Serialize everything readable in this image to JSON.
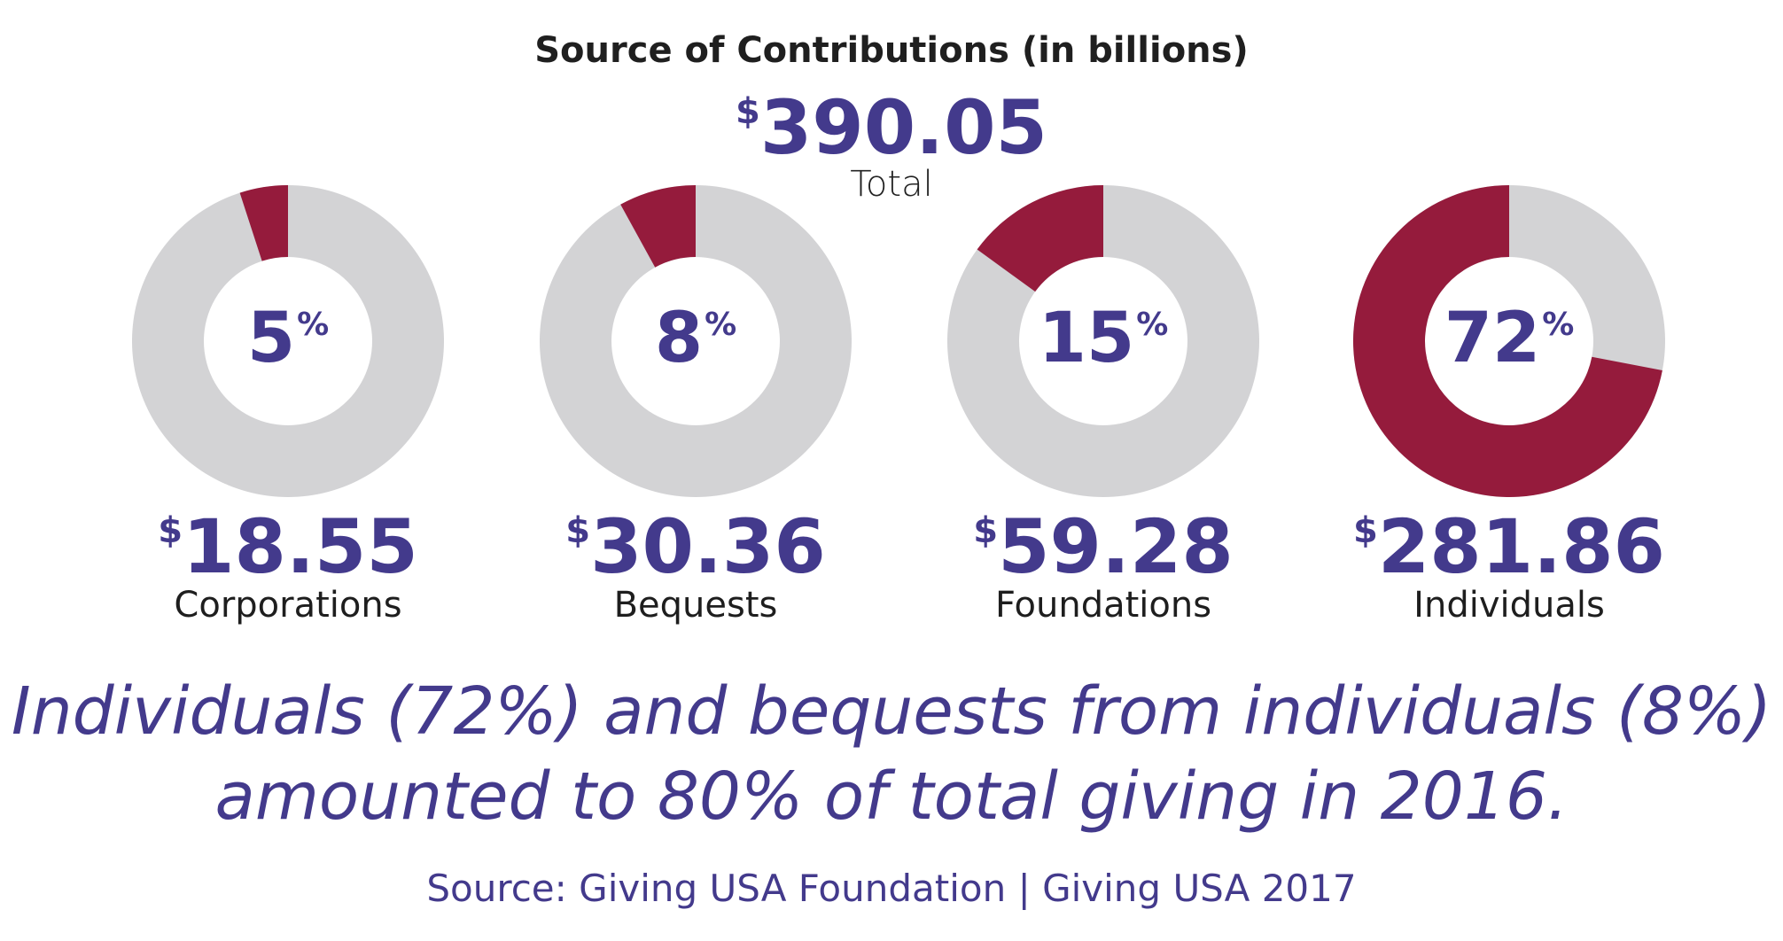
{
  "title": "Source of Contributions (in billions)",
  "total": {
    "currency": "$",
    "amount": "390.05",
    "label": "Total"
  },
  "colors": {
    "accent": "#951b3c",
    "remainder": "#d3d3d5",
    "text": "#433a8c"
  },
  "chart_data": {
    "type": "pie",
    "categories": [
      "Corporations",
      "Bequests",
      "Foundations",
      "Individuals"
    ],
    "values": [
      18.55,
      30.36,
      59.28,
      281.86
    ],
    "percent": [
      5,
      8,
      15,
      72
    ],
    "amount_labels": [
      "18.55",
      "30.36",
      "59.28",
      "281.86"
    ],
    "percent_labels": [
      "5",
      "8",
      "15",
      "72"
    ],
    "title": "Source of Contributions (in billions)"
  },
  "headline": {
    "line1": "Individuals (72%) and bequests from individuals (8%)",
    "line2": "amounted to 80% of total giving in 2016."
  },
  "source": "Source: Giving USA Foundation | Giving USA 2017"
}
